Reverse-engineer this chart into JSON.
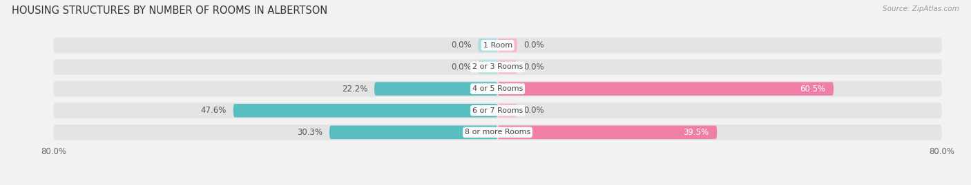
{
  "title": "HOUSING STRUCTURES BY NUMBER OF ROOMS IN ALBERTSON",
  "source": "Source: ZipAtlas.com",
  "categories": [
    "1 Room",
    "2 or 3 Rooms",
    "4 or 5 Rooms",
    "6 or 7 Rooms",
    "8 or more Rooms"
  ],
  "owner_values": [
    0.0,
    0.0,
    22.2,
    47.6,
    30.3
  ],
  "renter_values": [
    0.0,
    0.0,
    60.5,
    0.0,
    39.5
  ],
  "owner_color": "#59bec0",
  "renter_color": "#f07fa8",
  "renter_light_color": "#f7b8cc",
  "owner_light_color": "#a8dfe0",
  "bar_height": 0.62,
  "bg_bar_height": 0.72,
  "xlim": [
    -80,
    80
  ],
  "background_color": "#f2f2f2",
  "bar_bg_color": "#e4e4e4",
  "title_fontsize": 10.5,
  "label_fontsize": 8.5,
  "category_fontsize": 8.0,
  "legend_fontsize": 8.5,
  "source_fontsize": 7.5,
  "value_label_threshold": 5.0
}
